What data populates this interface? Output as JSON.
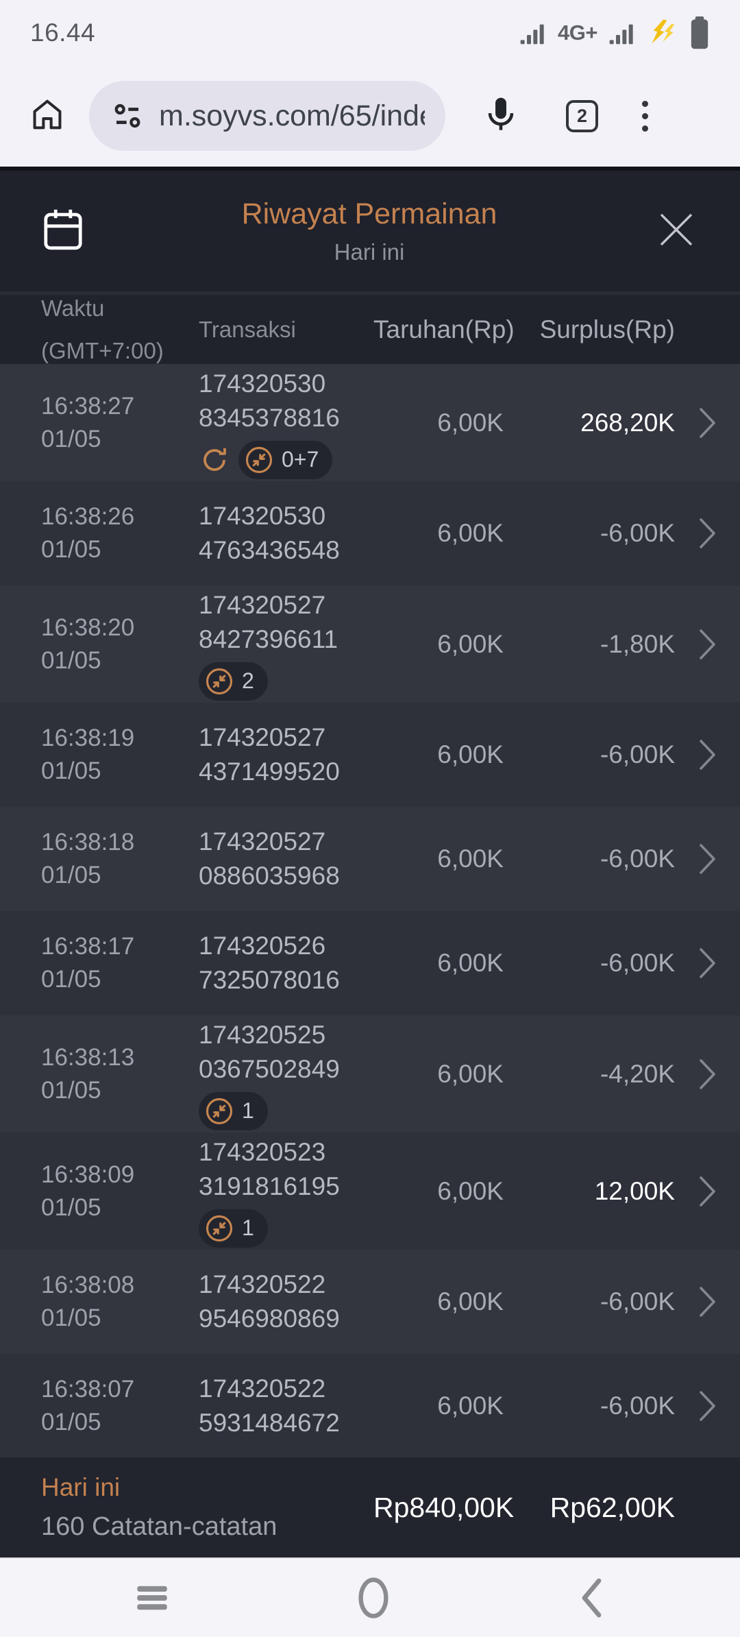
{
  "status_bar": {
    "time": "16.44",
    "network": "4G+"
  },
  "browser": {
    "url": "m.soyvs.com/65/inde",
    "tab_count": "2"
  },
  "modal": {
    "title": "Riwayat Permainan",
    "subtitle": "Hari ini"
  },
  "table": {
    "col_time_line1": "Waktu",
    "col_time_line2": "(GMT+7:00)",
    "col_txn": "Transaksi",
    "col_bet": "Taruhan(Rp)",
    "col_surplus": "Surplus(Rp)",
    "rows": [
      {
        "time": "16:38:27",
        "date": "01/05",
        "txn_a": "174320530",
        "txn_b": "8345378816",
        "refresh": true,
        "pill": "0+7",
        "bet": "6,00K",
        "surplus": "268,20K",
        "positive": true
      },
      {
        "time": "16:38:26",
        "date": "01/05",
        "txn_a": "174320530",
        "txn_b": "4763436548",
        "refresh": false,
        "pill": null,
        "bet": "6,00K",
        "surplus": "-6,00K",
        "positive": false
      },
      {
        "time": "16:38:20",
        "date": "01/05",
        "txn_a": "174320527",
        "txn_b": "8427396611",
        "refresh": false,
        "pill": "2",
        "bet": "6,00K",
        "surplus": "-1,80K",
        "positive": false
      },
      {
        "time": "16:38:19",
        "date": "01/05",
        "txn_a": "174320527",
        "txn_b": "4371499520",
        "refresh": false,
        "pill": null,
        "bet": "6,00K",
        "surplus": "-6,00K",
        "positive": false
      },
      {
        "time": "16:38:18",
        "date": "01/05",
        "txn_a": "174320527",
        "txn_b": "0886035968",
        "refresh": false,
        "pill": null,
        "bet": "6,00K",
        "surplus": "-6,00K",
        "positive": false
      },
      {
        "time": "16:38:17",
        "date": "01/05",
        "txn_a": "174320526",
        "txn_b": "7325078016",
        "refresh": false,
        "pill": null,
        "bet": "6,00K",
        "surplus": "-6,00K",
        "positive": false
      },
      {
        "time": "16:38:13",
        "date": "01/05",
        "txn_a": "174320525",
        "txn_b": "0367502849",
        "refresh": false,
        "pill": "1",
        "bet": "6,00K",
        "surplus": "-4,20K",
        "positive": false
      },
      {
        "time": "16:38:09",
        "date": "01/05",
        "txn_a": "174320523",
        "txn_b": "3191816195",
        "refresh": false,
        "pill": "1",
        "bet": "6,00K",
        "surplus": "12,00K",
        "positive": true
      },
      {
        "time": "16:38:08",
        "date": "01/05",
        "txn_a": "174320522",
        "txn_b": "9546980869",
        "refresh": false,
        "pill": null,
        "bet": "6,00K",
        "surplus": "-6,00K",
        "positive": false
      },
      {
        "time": "16:38:07",
        "date": "01/05",
        "txn_a": "174320522",
        "txn_b": "5931484672",
        "refresh": false,
        "pill": null,
        "bet": "6,00K",
        "surplus": "-6,00K",
        "positive": false
      }
    ]
  },
  "summary": {
    "period": "Hari ini",
    "records": "160 Catatan-catatan",
    "total_bet": "Rp840,00K",
    "total_surplus": "Rp62,00K"
  },
  "colors": {
    "accent_orange": "#C5824F",
    "row_light": "#33353F",
    "row_dark": "#2E303A",
    "panel": "#1F212B",
    "positive": "#FFFFFF",
    "badge_orange": "#C5854F"
  }
}
